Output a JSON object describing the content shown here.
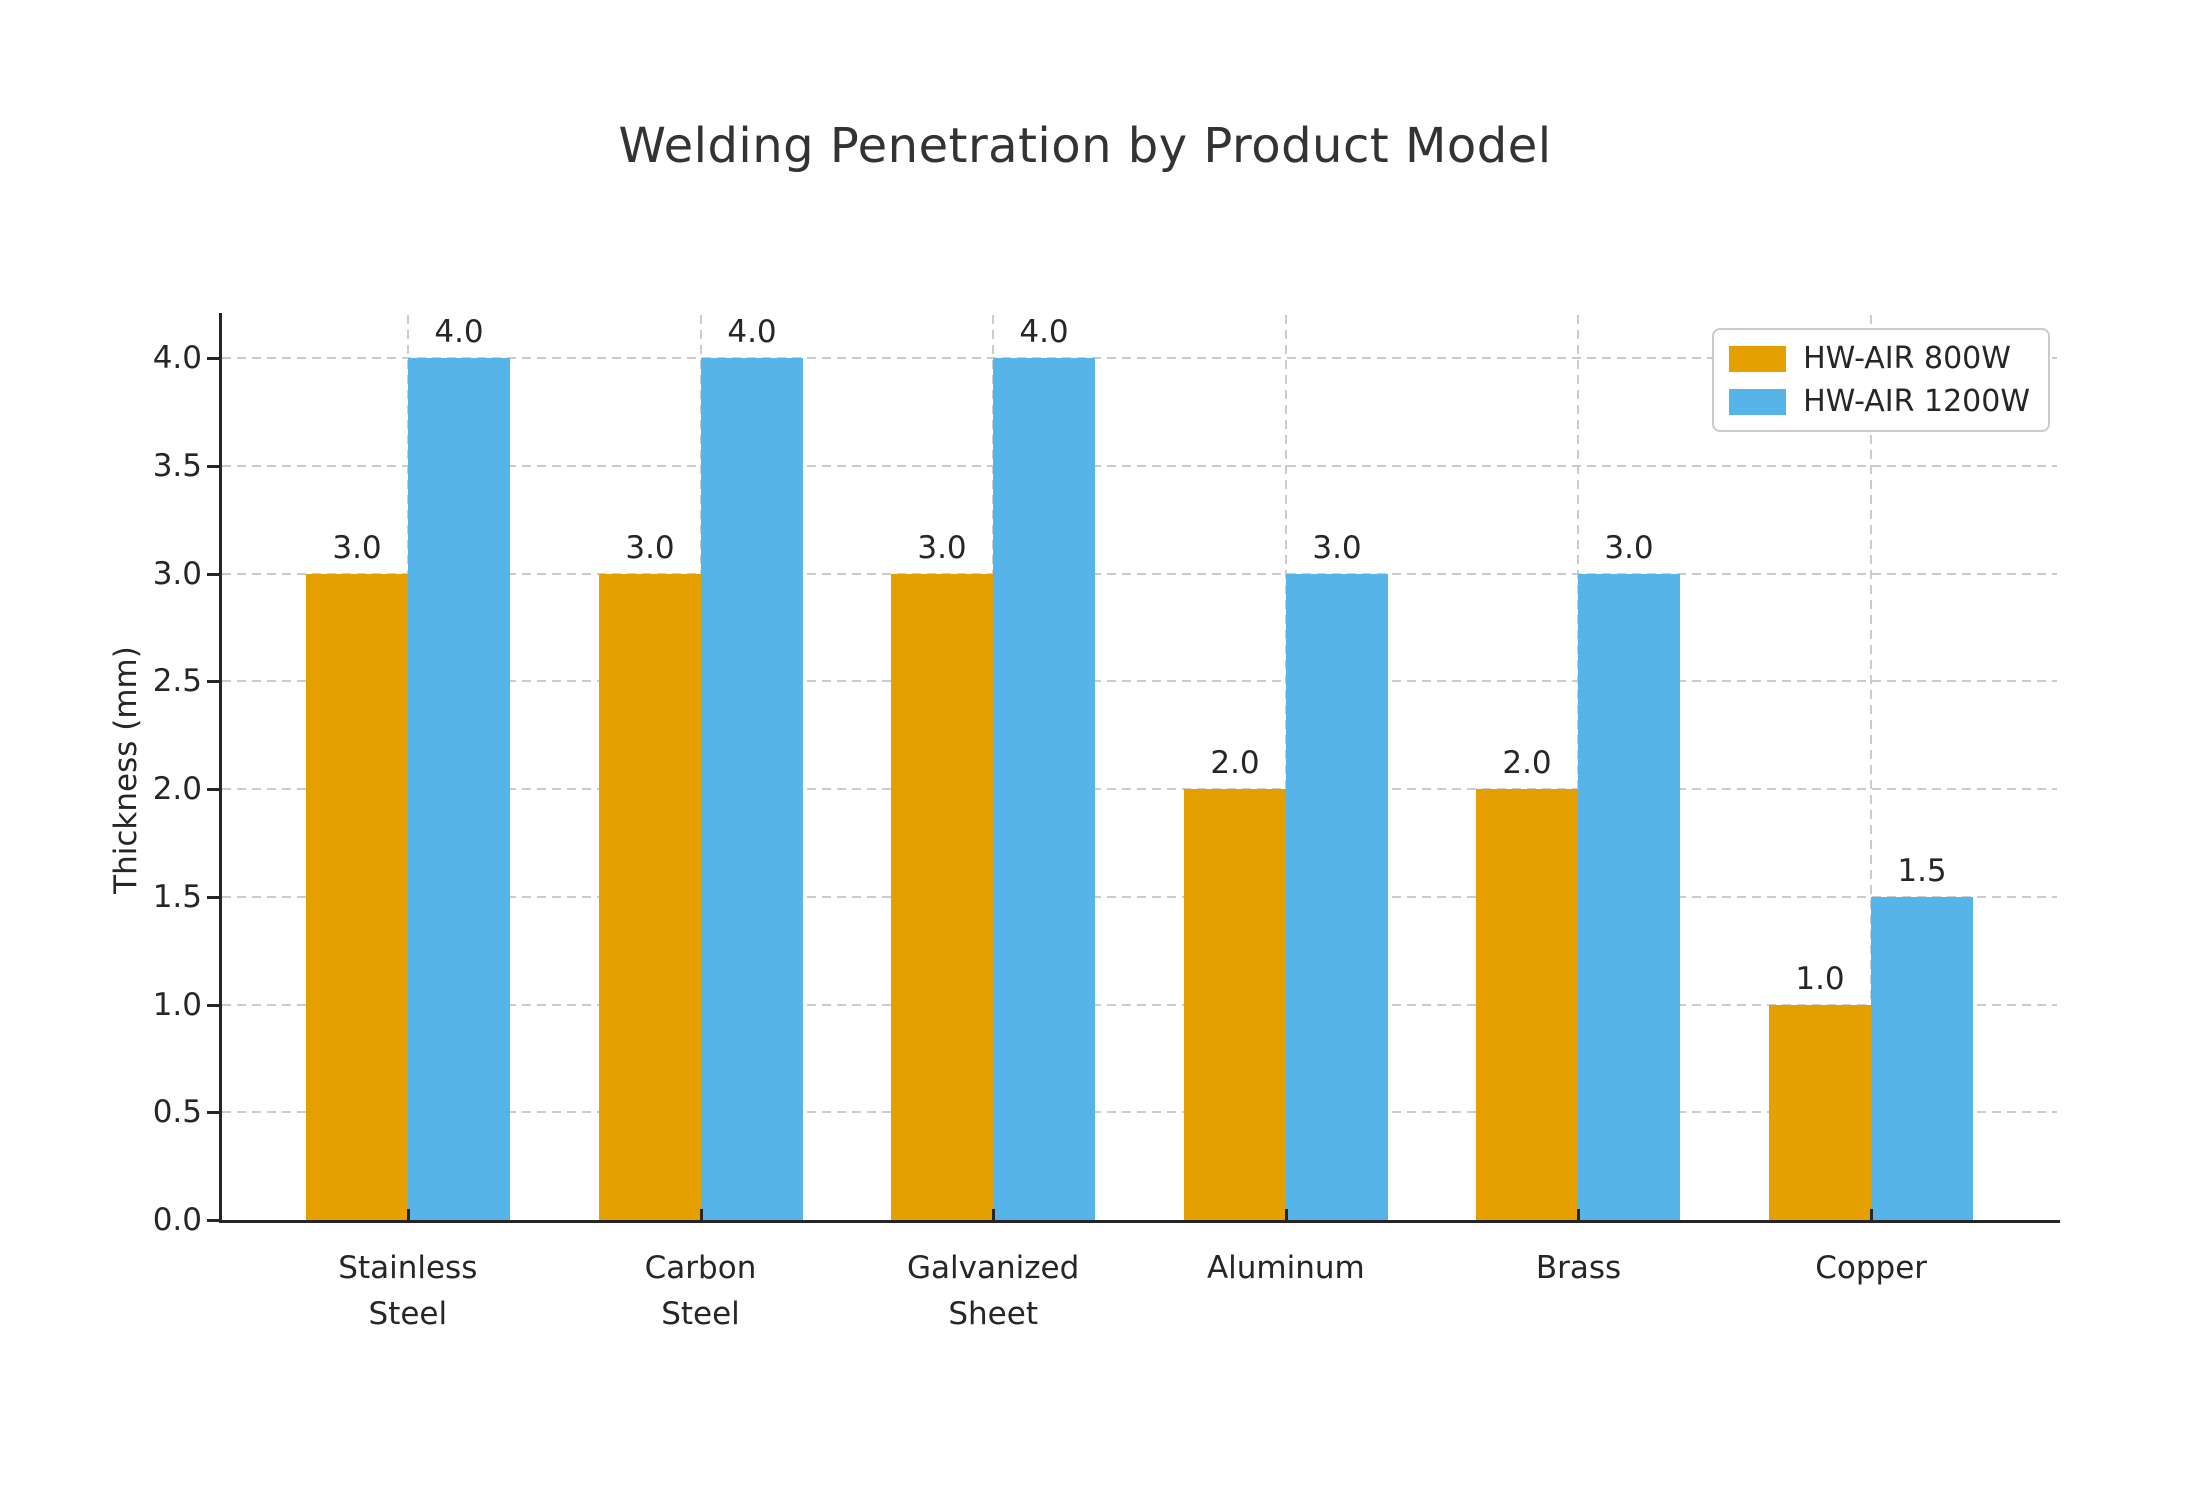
{
  "chart_data": {
    "type": "bar",
    "title": "Welding Penetration by Product Model",
    "ylabel": "Thickness (mm)",
    "xlabel": "",
    "categories": [
      "Stainless\nSteel",
      "Carbon\nSteel",
      "Galvanized\nSheet",
      "Aluminum",
      "Brass",
      "Copper"
    ],
    "series": [
      {
        "name": "HW-AIR 800W",
        "color": "#E69F00",
        "values": [
          3.0,
          3.0,
          3.0,
          2.0,
          2.0,
          1.0
        ]
      },
      {
        "name": "HW-AIR 1200W",
        "color": "#56B4E9",
        "values": [
          4.0,
          4.0,
          4.0,
          3.0,
          3.0,
          1.5
        ]
      }
    ],
    "yticks": [
      0.0,
      0.5,
      1.0,
      1.5,
      2.0,
      2.5,
      3.0,
      3.5,
      4.0
    ],
    "ylim": [
      0,
      4.2
    ],
    "bar_value_label_format": "one-decimal",
    "grid": {
      "axis": "both",
      "style": "dashed",
      "color": "#cccccc"
    },
    "legend_position": "upper right"
  }
}
